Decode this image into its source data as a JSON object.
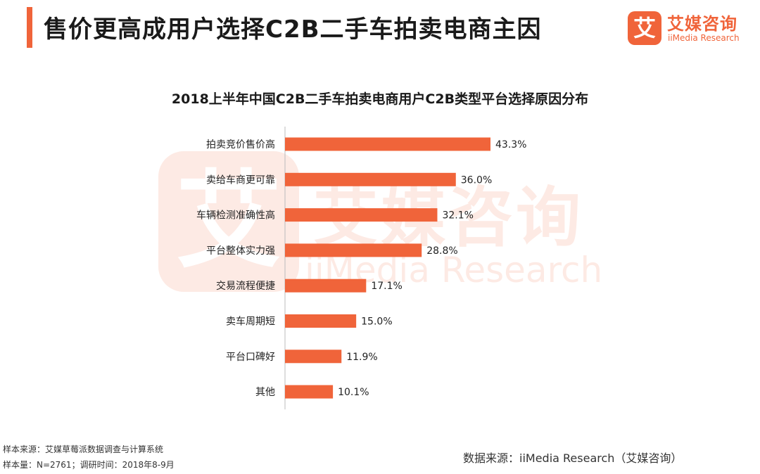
{
  "header": {
    "title": "售价更高成用户选择C2B二手车拍卖电商主因"
  },
  "logo": {
    "mark": "艾",
    "name": "艾媒咨询",
    "sub": "iiMedia Research"
  },
  "chart_data": {
    "type": "bar",
    "orientation": "horizontal",
    "title": "2018上半年中国C2B二手车拍卖电商用户C2B类型平台选择原因分布",
    "categories": [
      "拍卖竞价售价高",
      "卖给车商更可靠",
      "车辆检测准确性高",
      "平台整体实力强",
      "交易流程便捷",
      "卖车周期短",
      "平台口碑好",
      "其他"
    ],
    "values": [
      43.3,
      36.0,
      32.1,
      28.8,
      17.1,
      15.0,
      11.9,
      10.1
    ],
    "labels": [
      "43.3%",
      "36.0%",
      "32.1%",
      "28.8%",
      "17.1%",
      "15.0%",
      "11.9%",
      "10.1%"
    ],
    "unit": "%",
    "xlim": [
      0,
      43.3
    ],
    "bar_color": "#f0643a",
    "grid": false,
    "xlabel": "",
    "ylabel": ""
  },
  "footer": {
    "sample_source": "样本来源：艾媒草莓派数据调查与计算系统",
    "sample_size": "样本量：N=2761；调研时间：2018年8-9月",
    "data_source": "数据来源：iiMedia Research（艾媒咨询）"
  },
  "colors": {
    "accent": "#f0643a"
  }
}
